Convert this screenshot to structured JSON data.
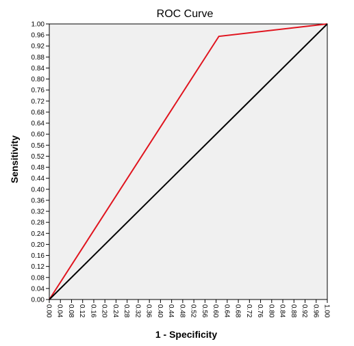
{
  "chart_data": {
    "type": "line",
    "title": "ROC Curve",
    "xlabel": "1 - Specificity",
    "ylabel": "Sensitivity",
    "xlim": [
      0,
      1
    ],
    "ylim": [
      0,
      1
    ],
    "x_ticks": [
      "0.00",
      "0.04",
      "0.08",
      "0.12",
      "0.16",
      "0.20",
      "0.24",
      "0.28",
      "0.32",
      "0.36",
      "0.40",
      "0.44",
      "0.48",
      "0.52",
      "0.56",
      "0.60",
      "0.64",
      "0.68",
      "0.72",
      "0.76",
      "0.80",
      "0.84",
      "0.88",
      "0.92",
      "0.96",
      "1.00"
    ],
    "y_ticks": [
      "0.00",
      "0.04",
      "0.08",
      "0.12",
      "0.16",
      "0.20",
      "0.24",
      "0.28",
      "0.32",
      "0.36",
      "0.40",
      "0.44",
      "0.48",
      "0.52",
      "0.56",
      "0.60",
      "0.64",
      "0.68",
      "0.72",
      "0.76",
      "0.80",
      "0.84",
      "0.88",
      "0.92",
      "0.96",
      "1.00"
    ],
    "grid": false,
    "background_color": "#f0f0f0",
    "series": [
      {
        "color": "#e0141e",
        "points": [
          [
            0,
            0
          ],
          [
            0.61,
            0.955
          ],
          [
            1,
            1
          ]
        ]
      },
      {
        "color": "#000000",
        "points": [
          [
            0,
            0
          ],
          [
            1,
            1
          ]
        ]
      }
    ]
  }
}
